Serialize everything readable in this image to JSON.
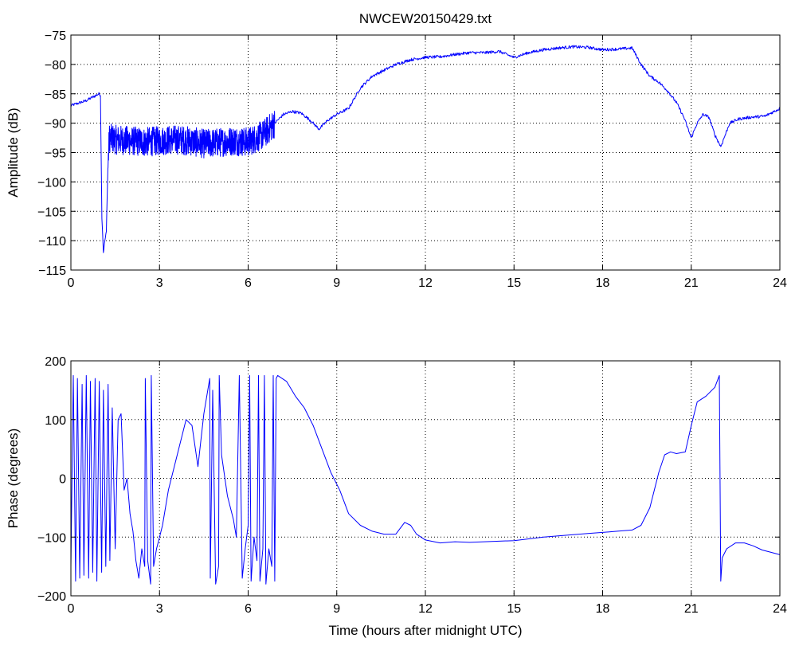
{
  "colors": {
    "line": "#0000ff",
    "axes": "#000000",
    "grid": "#000000",
    "background": "#ffffff"
  },
  "chart_data": [
    {
      "type": "line",
      "title": "NWCEW20150429.txt",
      "xlabel": "",
      "ylabel": "Amplitude (dB)",
      "xlim": [
        0,
        24
      ],
      "ylim": [
        -115,
        -75
      ],
      "xticks": [
        0,
        3,
        6,
        9,
        12,
        15,
        18,
        21,
        24
      ],
      "yticks": [
        -115,
        -110,
        -105,
        -100,
        -95,
        -90,
        -85,
        -80,
        -75
      ],
      "grid": true,
      "x": [
        0,
        0.5,
        0.95,
        1.0,
        1.05,
        1.1,
        1.15,
        1.2,
        1.25,
        1.3,
        1.5,
        2,
        2.5,
        3,
        3.5,
        4,
        4.5,
        5,
        5.5,
        6,
        6.5,
        6.9,
        7.2,
        7.5,
        7.8,
        8.1,
        8.4,
        8.7,
        9.0,
        9.4,
        9.8,
        10.2,
        10.6,
        11.0,
        11.5,
        12.0,
        12.5,
        13.0,
        13.5,
        14.0,
        14.5,
        15.0,
        15.5,
        16.0,
        16.5,
        17.0,
        17.5,
        18.0,
        18.5,
        19.0,
        19.3,
        19.6,
        19.9,
        20.2,
        20.5,
        20.75,
        21.0,
        21.2,
        21.4,
        21.6,
        21.8,
        22.0,
        22.3,
        22.6,
        23.0,
        23.5,
        24.0
      ],
      "y": [
        -87,
        -86.2,
        -85,
        -85.2,
        -106,
        -112,
        -110,
        -108.5,
        -98,
        -92.5,
        -92.8,
        -93,
        -93.2,
        -93,
        -92.8,
        -93,
        -93.5,
        -93.3,
        -93,
        -93.2,
        -92,
        -90,
        -88.5,
        -88,
        -88.3,
        -89.5,
        -91,
        -89.5,
        -88.5,
        -87.5,
        -84,
        -82,
        -81,
        -80,
        -79.2,
        -78.8,
        -78.7,
        -78.3,
        -78,
        -78,
        -77.8,
        -78.8,
        -78,
        -77.5,
        -77.2,
        -77,
        -77.1,
        -77.5,
        -77.4,
        -77.2,
        -80,
        -82,
        -83,
        -84.5,
        -86.5,
        -89,
        -92.5,
        -90,
        -88.5,
        -89,
        -92,
        -94,
        -90,
        -89.3,
        -89,
        -88.8,
        -87.5
      ],
      "noise": {
        "from": 1.25,
        "to": 6.95,
        "amplitude": 2.5
      }
    },
    {
      "type": "line",
      "title": "",
      "xlabel": "Time (hours after midnight UTC)",
      "ylabel": "Phase (degrees)",
      "xlim": [
        0,
        24
      ],
      "ylim": [
        -200,
        200
      ],
      "xticks": [
        0,
        3,
        6,
        9,
        12,
        15,
        18,
        21,
        24
      ],
      "yticks": [
        -200,
        -100,
        0,
        100,
        200
      ],
      "grid": true,
      "x": [
        0,
        0.08,
        0.16,
        0.22,
        0.3,
        0.38,
        0.44,
        0.52,
        0.6,
        0.66,
        0.74,
        0.82,
        0.88,
        0.96,
        1.04,
        1.1,
        1.18,
        1.26,
        1.32,
        1.4,
        1.5,
        1.6,
        1.7,
        1.8,
        1.9,
        2.0,
        2.1,
        2.2,
        2.3,
        2.4,
        2.5,
        2.52,
        2.6,
        2.7,
        2.72,
        2.8,
        2.9,
        3.0,
        3.1,
        3.3,
        3.5,
        3.7,
        3.9,
        4.1,
        4.3,
        4.5,
        4.7,
        4.72,
        4.8,
        4.9,
        5.0,
        5.02,
        5.1,
        5.3,
        5.5,
        5.6,
        5.7,
        5.8,
        5.9,
        6.0,
        6.05,
        6.1,
        6.2,
        6.3,
        6.35,
        6.4,
        6.5,
        6.55,
        6.6,
        6.7,
        6.8,
        6.85,
        6.9,
        6.95,
        7.0,
        7.3,
        7.6,
        7.9,
        8.2,
        8.5,
        8.8,
        9.1,
        9.4,
        9.8,
        10.2,
        10.6,
        11.0,
        11.3,
        11.5,
        11.7,
        12.0,
        12.5,
        13.0,
        13.5,
        14.0,
        14.5,
        15.0,
        15.5,
        16.0,
        16.5,
        17.0,
        17.5,
        18.0,
        18.5,
        19.0,
        19.3,
        19.6,
        19.9,
        20.1,
        20.3,
        20.5,
        20.8,
        21.0,
        21.2,
        21.5,
        21.8,
        21.95,
        22.0,
        22.05,
        22.2,
        22.5,
        22.8,
        23.1,
        23.4,
        23.7,
        24.0
      ],
      "y": [
        -150,
        175,
        -175,
        170,
        -170,
        160,
        -165,
        175,
        -170,
        165,
        -160,
        170,
        -175,
        165,
        -160,
        150,
        -150,
        160,
        -140,
        120,
        -120,
        100,
        110,
        -20,
        0,
        -60,
        -90,
        -140,
        -170,
        -120,
        -150,
        170,
        -140,
        -180,
        175,
        -150,
        -120,
        -100,
        -80,
        -20,
        20,
        60,
        100,
        90,
        20,
        110,
        170,
        -170,
        150,
        -180,
        -150,
        175,
        40,
        -30,
        -70,
        -100,
        175,
        -170,
        -120,
        -80,
        175,
        -175,
        -100,
        -140,
        175,
        -175,
        -120,
        175,
        -180,
        -120,
        -150,
        175,
        -175,
        170,
        175,
        165,
        140,
        120,
        90,
        50,
        10,
        -20,
        -60,
        -80,
        -90,
        -95,
        -95,
        -75,
        -80,
        -95,
        -105,
        -110,
        -108,
        -109,
        -108,
        -107,
        -106,
        -103,
        -100,
        -98,
        -96,
        -94,
        -92,
        -90,
        -88,
        -80,
        -50,
        10,
        40,
        45,
        42,
        45,
        90,
        130,
        140,
        155,
        175,
        -175,
        -135,
        -120,
        -110,
        -110,
        -115,
        -122,
        -126,
        -130
      ]
    }
  ]
}
